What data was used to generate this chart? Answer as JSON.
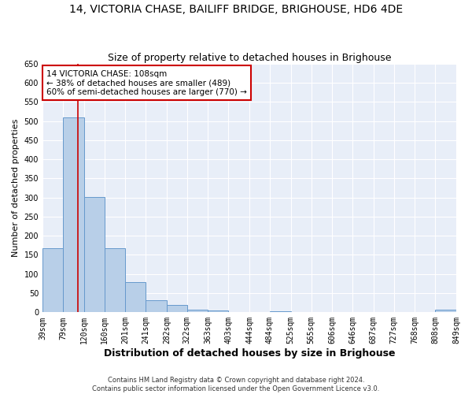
{
  "title": "14, VICTORIA CHASE, BAILIFF BRIDGE, BRIGHOUSE, HD6 4DE",
  "subtitle": "Size of property relative to detached houses in Brighouse",
  "xlabel": "Distribution of detached houses by size in Brighouse",
  "ylabel": "Number of detached properties",
  "footer_line1": "Contains HM Land Registry data © Crown copyright and database right 2024.",
  "footer_line2": "Contains public sector information licensed under the Open Government Licence v3.0.",
  "bin_edges": [
    39,
    79,
    120,
    160,
    201,
    241,
    282,
    322,
    363,
    403,
    444,
    484,
    525,
    565,
    606,
    646,
    687,
    727,
    768,
    808,
    849
  ],
  "bar_heights": [
    168,
    510,
    302,
    168,
    78,
    31,
    19,
    7,
    5,
    0,
    0,
    3,
    0,
    0,
    0,
    0,
    0,
    0,
    0,
    6
  ],
  "bar_color": "#b8cfe8",
  "bar_edge_color": "#6699cc",
  "bg_color": "#e8eef8",
  "grid_color": "#ffffff",
  "vline_x": 108,
  "vline_color": "#cc0000",
  "annotation_line1": "14 VICTORIA CHASE: 108sqm",
  "annotation_line2": "← 38% of detached houses are smaller (489)",
  "annotation_line3": "60% of semi-detached houses are larger (770) →",
  "annotation_box_color": "#cc0000",
  "ylim": [
    0,
    650
  ],
  "yticks": [
    0,
    50,
    100,
    150,
    200,
    250,
    300,
    350,
    400,
    450,
    500,
    550,
    600,
    650
  ],
  "title_fontsize": 10,
  "subtitle_fontsize": 9,
  "xlabel_fontsize": 9,
  "ylabel_fontsize": 8,
  "tick_fontsize": 7,
  "annotation_fontsize": 7.5,
  "footer_fontsize": 6
}
